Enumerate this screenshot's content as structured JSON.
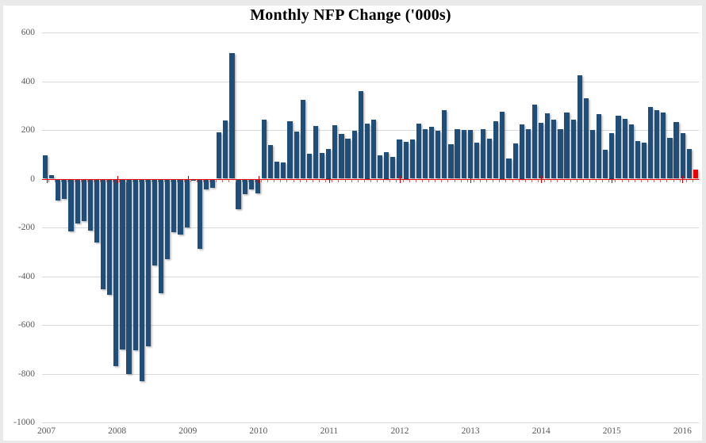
{
  "chart_data": {
    "type": "bar",
    "title": "Monthly NFP Change ('000s)",
    "xlabel": "",
    "ylabel": "",
    "grid": "on",
    "legend": "none",
    "n_bars": 102,
    "frequency": "monthly",
    "y_axis": {
      "min": -1000,
      "max": 600,
      "step": 200,
      "tick_labels": [
        "600",
        "400",
        "200",
        "0",
        "-200",
        "-400",
        "-600",
        "-800",
        "-1000"
      ]
    },
    "x_axis": {
      "year_labels": [
        "2007",
        "2008",
        "2009",
        "2010",
        "2011",
        "2012",
        "2013",
        "2014",
        "2015",
        "2016"
      ]
    },
    "values": [
      97,
      15,
      -86,
      -80,
      -214,
      -182,
      -172,
      -210,
      -259,
      -452,
      -474,
      -765,
      -697,
      -798,
      -701,
      -826,
      -684,
      -354,
      -467,
      -327,
      -216,
      -227,
      -198,
      -6,
      -283,
      -40,
      -35,
      189,
      239,
      516,
      -122,
      -61,
      -42,
      -57,
      241,
      137,
      71,
      68,
      235,
      194,
      322,
      102,
      217,
      106,
      122,
      221,
      183,
      164,
      196,
      360,
      226,
      243,
      96,
      110,
      88,
      160,
      150,
      161,
      225,
      203,
      214,
      197,
      280,
      141,
      203,
      199,
      201,
      149,
      202,
      164,
      237,
      274,
      84,
      144,
      222,
      203,
      304,
      229,
      267,
      243,
      203,
      271,
      243,
      423,
      329,
      201,
      266,
      119,
      187,
      260,
      245,
      223,
      153,
      149,
      295,
      280,
      271,
      168,
      233,
      186,
      123,
      38
    ],
    "colors": {
      "bar": "#1f4e79",
      "last_bar_highlight": "#ee0000",
      "zero_line": "#ff0000",
      "gridline": "#d9d9d9",
      "axis_text": "#595959",
      "title_text": "#000000",
      "frame": "#e9e9e9"
    }
  }
}
